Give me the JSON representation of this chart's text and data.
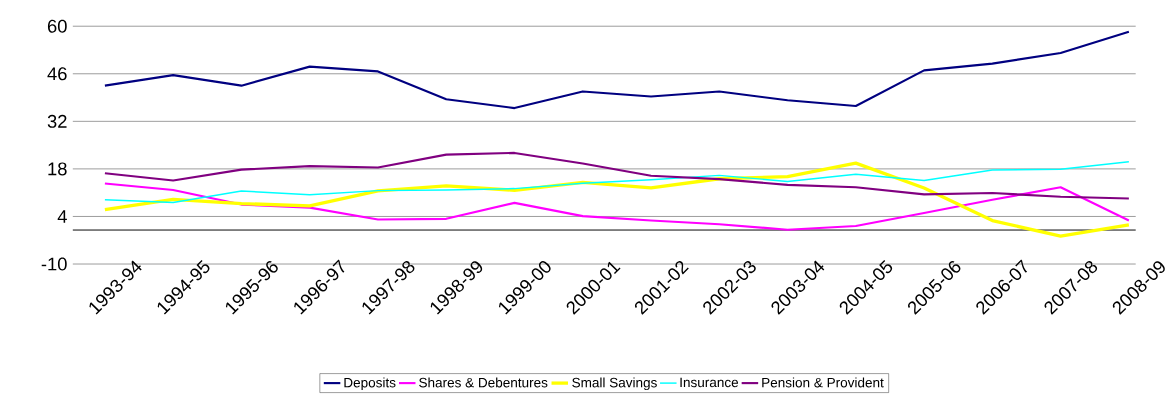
{
  "chart_data": {
    "type": "line",
    "categories": [
      "1993-94",
      "1994-95",
      "1995-96",
      "1996-97",
      "1997-98",
      "1998-99",
      "1999-00",
      "2000-01",
      "2001-02",
      "2002-03",
      "2003-04",
      "2004-05",
      "2005-06",
      "2006-07",
      "2007-08",
      "2008-09"
    ],
    "series": [
      {
        "name": "Deposits",
        "color": "#000080",
        "values": [
          42.5,
          45.6,
          42.5,
          48.1,
          46.7,
          38.5,
          35.9,
          40.8,
          39.3,
          40.8,
          38.2,
          36.5,
          47.0,
          49.0,
          52.1,
          58.4
        ]
      },
      {
        "name": "Shares & Debentures",
        "color": "#ff00ff",
        "values": [
          13.7,
          11.8,
          7.5,
          6.6,
          3.1,
          3.3,
          8.0,
          4.1,
          2.8,
          1.7,
          0.1,
          1.2,
          5.0,
          8.9,
          12.6,
          2.8
        ]
      },
      {
        "name": "Small Savings",
        "color": "#ffff00",
        "values": [
          6.0,
          9.0,
          7.8,
          7.1,
          11.5,
          13.0,
          11.7,
          14.0,
          12.4,
          15.1,
          15.7,
          19.7,
          12.4,
          2.8,
          -1.8,
          1.5
        ]
      },
      {
        "name": "Insurance",
        "color": "#00ffff",
        "values": [
          8.9,
          8.1,
          11.5,
          10.4,
          11.6,
          11.8,
          12.2,
          13.8,
          14.8,
          16.1,
          14.3,
          16.4,
          14.6,
          17.7,
          17.9,
          20.1
        ]
      },
      {
        "name": "Pension & Provident",
        "color": "#800080",
        "values": [
          16.7,
          14.6,
          17.8,
          18.8,
          18.4,
          22.2,
          22.7,
          19.6,
          16.0,
          15.0,
          13.3,
          12.6,
          10.5,
          10.9,
          9.8,
          9.3
        ]
      }
    ],
    "ylim": [
      -10,
      60
    ],
    "yticks": [
      -10,
      4,
      18,
      32,
      46,
      60
    ],
    "grid": "y",
    "legend": "bottom",
    "marker": "none",
    "line_style": "solid"
  }
}
